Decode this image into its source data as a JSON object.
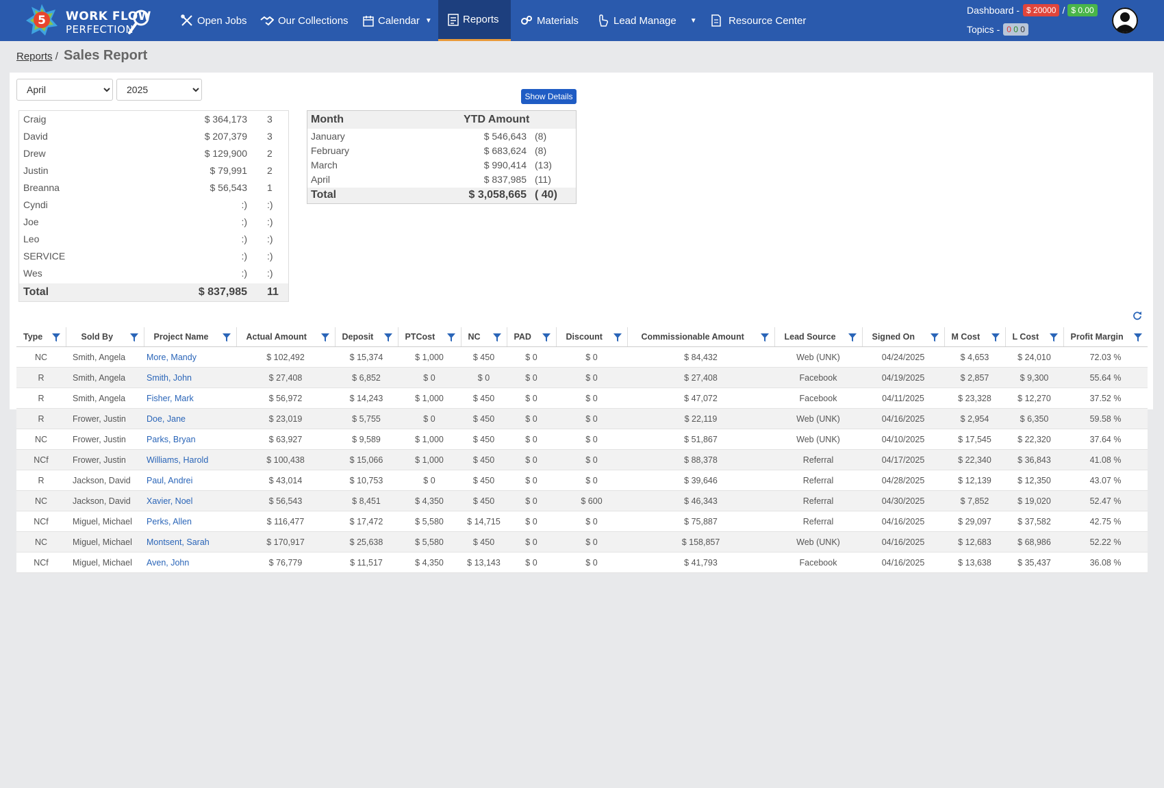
{
  "brand": {
    "line1": "WORK FLOW",
    "line2": "PERFECTION",
    "badge_number": "5"
  },
  "nav": {
    "items": [
      {
        "label": "Open Jobs",
        "icon": "tools-icon"
      },
      {
        "label": "Our Collections",
        "icon": "handshake-icon"
      },
      {
        "label": "Calendar",
        "icon": "calendar-icon",
        "dropdown": true
      },
      {
        "label": "Reports",
        "icon": "report-icon",
        "active": true
      },
      {
        "label": "Materials",
        "icon": "gears-icon"
      },
      {
        "label": "Lead Manage",
        "icon": "hand-pointer-icon",
        "dropdown": true
      },
      {
        "label": "Resource Center",
        "icon": "document-icon"
      }
    ]
  },
  "dashboard": {
    "label": "Dashboard -",
    "red_amount": "$ 20000",
    "separator": "/",
    "green_amount": "$ 0.00",
    "topics_label": "Topics -",
    "topics_counts": [
      "0",
      "0",
      "0"
    ]
  },
  "breadcrumb": {
    "link": "Reports",
    "separator": "/",
    "title": "Sales Report"
  },
  "filters": {
    "month": "April",
    "year": "2025"
  },
  "show_details_label": "Show Details",
  "summary": {
    "rows": [
      {
        "name": "Craig",
        "amount": "$ 364,173",
        "count": "3"
      },
      {
        "name": "David",
        "amount": "$ 207,379",
        "count": "3"
      },
      {
        "name": "Drew",
        "amount": "$ 129,900",
        "count": "2"
      },
      {
        "name": "Justin",
        "amount": "$ 79,991",
        "count": "2"
      },
      {
        "name": "Breanna",
        "amount": "$ 56,543",
        "count": "1"
      },
      {
        "name": "Cyndi",
        "amount": ":)",
        "count": ":)"
      },
      {
        "name": "Joe",
        "amount": ":)",
        "count": ":)"
      },
      {
        "name": "Leo",
        "amount": ":)",
        "count": ":)"
      },
      {
        "name": "SERVICE",
        "amount": ":)",
        "count": ":)"
      },
      {
        "name": "Wes",
        "amount": ":)",
        "count": ":)"
      }
    ],
    "total": {
      "label": "Total",
      "amount": "$ 837,985",
      "count": "11"
    }
  },
  "ytd": {
    "headers": {
      "month": "Month",
      "amount": "YTD Amount"
    },
    "rows": [
      {
        "month": "January",
        "amount": "$ 546,643",
        "count": "(8)"
      },
      {
        "month": "February",
        "amount": "$ 683,624",
        "count": "(8)"
      },
      {
        "month": "March",
        "amount": "$ 990,414",
        "count": "(13)"
      },
      {
        "month": "April",
        "amount": "$ 837,985",
        "count": "(11)"
      }
    ],
    "total": {
      "label": "Total",
      "amount": "$ 3,058,665",
      "count": "( 40)"
    }
  },
  "table": {
    "columns": [
      "Type",
      "Sold By",
      "Project Name",
      "Actual Amount",
      "Deposit",
      "PTCost",
      "NC",
      "PAD",
      "Discount",
      "Commissionable Amount",
      "Lead Source",
      "Signed On",
      "M Cost",
      "L Cost",
      "Profit Margin"
    ],
    "rows": [
      [
        "NC",
        "Smith, Angela",
        "More, Mandy",
        "$ 102,492",
        "$ 15,374",
        "$ 1,000",
        "$ 450",
        "$ 0",
        "$ 0",
        "$ 84,432",
        "Web (UNK)",
        "04/24/2025",
        "$ 4,653",
        "$ 24,010",
        "72.03 %"
      ],
      [
        "R",
        "Smith, Angela",
        "Smith, John",
        "$ 27,408",
        "$ 6,852",
        "$ 0",
        "$ 0",
        "$ 0",
        "$ 0",
        "$ 27,408",
        "Facebook",
        "04/19/2025",
        "$ 2,857",
        "$ 9,300",
        "55.64 %"
      ],
      [
        "R",
        "Smith, Angela",
        "Fisher, Mark",
        "$ 56,972",
        "$ 14,243",
        "$ 1,000",
        "$ 450",
        "$ 0",
        "$ 0",
        "$ 47,072",
        "Facebook",
        "04/11/2025",
        "$ 23,328",
        "$ 12,270",
        "37.52 %"
      ],
      [
        "R",
        "Frower, Justin",
        "Doe, Jane",
        "$ 23,019",
        "$ 5,755",
        "$ 0",
        "$ 450",
        "$ 0",
        "$ 0",
        "$ 22,119",
        "Web (UNK)",
        "04/16/2025",
        "$ 2,954",
        "$ 6,350",
        "59.58 %"
      ],
      [
        "NC",
        "Frower, Justin",
        "Parks, Bryan",
        "$ 63,927",
        "$ 9,589",
        "$ 1,000",
        "$ 450",
        "$ 0",
        "$ 0",
        "$ 51,867",
        "Web (UNK)",
        "04/10/2025",
        "$ 17,545",
        "$ 22,320",
        "37.64 %"
      ],
      [
        "NCf",
        "Frower, Justin",
        "Williams, Harold",
        "$ 100,438",
        "$ 15,066",
        "$ 1,000",
        "$ 450",
        "$ 0",
        "$ 0",
        "$ 88,378",
        "Referral",
        "04/17/2025",
        "$ 22,340",
        "$ 36,843",
        "41.08 %"
      ],
      [
        "R",
        "Jackson, David",
        "Paul, Andrei",
        "$ 43,014",
        "$ 10,753",
        "$ 0",
        "$ 450",
        "$ 0",
        "$ 0",
        "$ 39,646",
        "Referral",
        "04/28/2025",
        "$ 12,139",
        "$ 12,350",
        "43.07 %"
      ],
      [
        "NC",
        "Jackson, David",
        "Xavier, Noel",
        "$ 56,543",
        "$ 8,451",
        "$ 4,350",
        "$ 450",
        "$ 0",
        "$ 600",
        "$ 46,343",
        "Referral",
        "04/30/2025",
        "$ 7,852",
        "$ 19,020",
        "52.47 %"
      ],
      [
        "NCf",
        "Miguel, Michael",
        "Perks, Allen",
        "$ 116,477",
        "$ 17,472",
        "$ 5,580",
        "$ 14,715",
        "$ 0",
        "$ 0",
        "$ 75,887",
        "Referral",
        "04/16/2025",
        "$ 29,097",
        "$ 37,582",
        "42.75 %"
      ],
      [
        "NC",
        "Miguel, Michael",
        "Montsent, Sarah",
        "$ 170,917",
        "$ 25,638",
        "$ 5,580",
        "$ 450",
        "$ 0",
        "$ 0",
        "$ 158,857",
        "Web (UNK)",
        "04/16/2025",
        "$ 12,683",
        "$ 68,986",
        "52.22 %"
      ],
      [
        "NCf",
        "Miguel, Michael",
        "Aven, John",
        "$ 76,779",
        "$ 11,517",
        "$ 4,350",
        "$ 13,143",
        "$ 0",
        "$ 0",
        "$ 41,793",
        "Facebook",
        "04/16/2025",
        "$ 13,638",
        "$ 35,437",
        "36.08 %"
      ]
    ]
  }
}
